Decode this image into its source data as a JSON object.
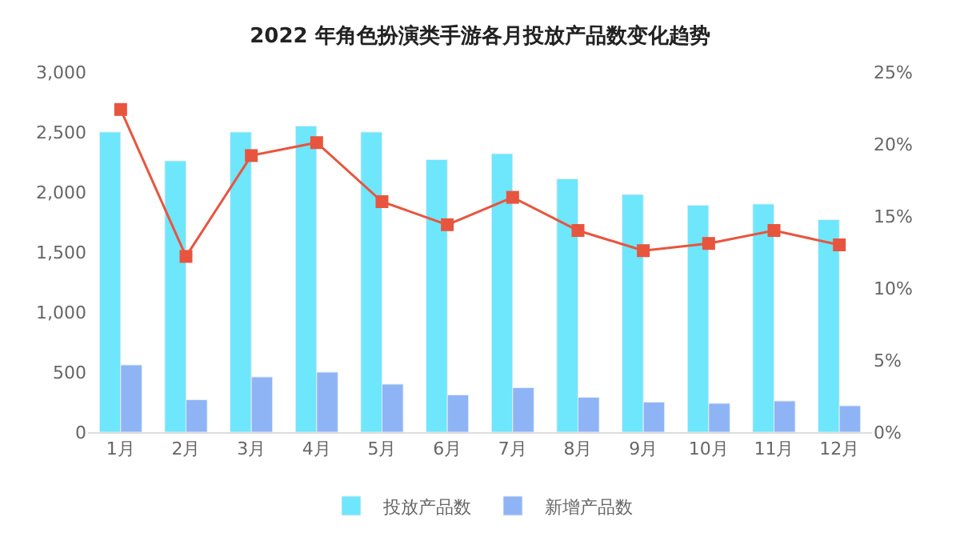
{
  "chart_data": {
    "type": "bar",
    "title": "2022 年角色扮演类手游各月投放产品数变化趋势",
    "categories": [
      "1月",
      "2月",
      "3月",
      "4月",
      "5月",
      "6月",
      "7月",
      "8月",
      "9月",
      "10月",
      "11月",
      "12月"
    ],
    "series": [
      {
        "name": "投放产品数",
        "color": "#6ee6fb",
        "values": [
          2500,
          2260,
          2500,
          2550,
          2500,
          2270,
          2320,
          2110,
          1980,
          1890,
          1900,
          1770
        ]
      },
      {
        "name": "新增产品数",
        "color": "#8fb4f5",
        "values": [
          560,
          270,
          460,
          500,
          400,
          310,
          370,
          290,
          250,
          240,
          260,
          220
        ]
      },
      {
        "type": "line",
        "axis": "y2",
        "color": "#e8553e",
        "marker": "square",
        "values": [
          22.4,
          12.2,
          19.2,
          20.1,
          16.0,
          14.4,
          16.3,
          14.0,
          12.6,
          13.1,
          14.0,
          13.0
        ]
      }
    ],
    "ylim": [
      0,
      3000
    ],
    "yticks": [
      0,
      {
        "value": 500,
        "label": "500"
      },
      {
        "value": 1000,
        "label": "1,000"
      },
      {
        "value": 1500,
        "label": "1,500"
      },
      {
        "value": 2000,
        "label": "2,000"
      },
      {
        "value": 2500,
        "label": "2,500"
      },
      {
        "value": 3000,
        "label": "3,000"
      }
    ],
    "y2lim": [
      0,
      25
    ],
    "y2ticks": [
      {
        "value": 0,
        "label": "0%"
      },
      {
        "value": 5,
        "label": "5%"
      },
      {
        "value": 10,
        "label": "10%"
      },
      {
        "value": 15,
        "label": "15%"
      },
      {
        "value": 20,
        "label": "20%"
      },
      {
        "value": 25,
        "label": "25%"
      }
    ],
    "legend": "bottom"
  }
}
